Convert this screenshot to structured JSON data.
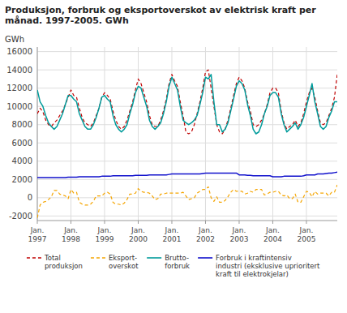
{
  "chart_data": {
    "type": "line",
    "title": "Produksjon, forbruk og eksportoverskot av elektrisk kraft per\nmånad. 1997-2005. GWh",
    "y_label": "GWh",
    "categories": [
      "Jan.\n1997",
      null,
      null,
      null,
      null,
      null,
      null,
      null,
      null,
      null,
      null,
      null,
      "Jan.\n1998",
      null,
      null,
      null,
      null,
      null,
      null,
      null,
      null,
      null,
      null,
      null,
      "Jan.\n1999",
      null,
      null,
      null,
      null,
      null,
      null,
      null,
      null,
      null,
      null,
      null,
      "Jan.\n2000",
      null,
      null,
      null,
      null,
      null,
      null,
      null,
      null,
      null,
      null,
      null,
      "Jan.\n2001",
      null,
      null,
      null,
      null,
      null,
      null,
      null,
      null,
      null,
      null,
      null,
      "Jan.\n2002",
      null,
      null,
      null,
      null,
      null,
      null,
      null,
      null,
      null,
      null,
      null,
      "Jan.\n2003",
      null,
      null,
      null,
      null,
      null,
      null,
      null,
      null,
      null,
      null,
      null,
      "Jan.\n2004",
      null,
      null,
      null,
      null,
      null,
      null,
      null,
      null,
      null,
      null,
      null,
      "Jan.\n2005",
      null,
      null,
      null,
      null,
      null,
      null,
      null,
      null,
      null,
      null,
      null
    ],
    "ylim": [
      -2500,
      16500
    ],
    "yticks": [
      -2000,
      0,
      2000,
      4000,
      6000,
      8000,
      10000,
      12000,
      14000,
      16000
    ],
    "grid": true,
    "legend": "bottom",
    "series": [
      {
        "name": "Total\nproduksjon",
        "color": "#c00000",
        "line_style": "dashed",
        "values": [
          9200,
          9800,
          9400,
          8500,
          8000,
          7800,
          8200,
          8500,
          9000,
          9500,
          10200,
          11000,
          11800,
          11200,
          11000,
          9800,
          8800,
          8200,
          8000,
          7800,
          8200,
          9000,
          9800,
          11000,
          11500,
          11200,
          10800,
          9500,
          8500,
          7800,
          7500,
          7800,
          8500,
          9500,
          10500,
          11800,
          13000,
          12500,
          11500,
          10500,
          9000,
          8000,
          7800,
          7800,
          8500,
          9500,
          10800,
          12500,
          13500,
          12800,
          12200,
          10500,
          9000,
          7200,
          7000,
          7200,
          8000,
          9200,
          10500,
          12000,
          13800,
          14000,
          12000,
          10000,
          8000,
          7200,
          7000,
          7500,
          8500,
          9800,
          11200,
          12500,
          13200,
          12800,
          12000,
          10500,
          9500,
          8000,
          7800,
          8000,
          8500,
          9200,
          10200,
          11500,
          12000,
          12000,
          11500,
          9500,
          8200,
          7500,
          7800,
          8000,
          8500,
          7800,
          8200,
          9200,
          10500,
          11500,
          12000,
          11000,
          9500,
          8200,
          8000,
          8200,
          9000,
          9800,
          11000,
          13500
        ]
      },
      {
        "name": "Eksport-\noverskot",
        "color": "#f5a500",
        "line_style": "dashed",
        "values": [
          -2200,
          -800,
          -500,
          -400,
          -200,
          100,
          800,
          800,
          400,
          300,
          200,
          -100,
          900,
          500,
          600,
          -500,
          -700,
          -800,
          -800,
          -700,
          -400,
          200,
          200,
          200,
          500,
          600,
          400,
          -500,
          -700,
          -700,
          -800,
          -600,
          -200,
          400,
          400,
          500,
          1000,
          700,
          600,
          600,
          500,
          200,
          -200,
          -100,
          400,
          400,
          500,
          500,
          500,
          500,
          500,
          500,
          600,
          200,
          -200,
          -100,
          0,
          500,
          700,
          900,
          900,
          1200,
          0,
          -400,
          100,
          -500,
          -500,
          -300,
          100,
          600,
          900,
          700,
          700,
          700,
          400,
          500,
          700,
          600,
          900,
          900,
          900,
          300,
          400,
          600,
          600,
          700,
          700,
          300,
          200,
          300,
          -100,
          -100,
          400,
          -500,
          -500,
          100,
          700,
          600,
          100,
          700,
          400,
          500,
          500,
          500,
          200,
          600,
          600,
          1400
        ]
      },
      {
        "name": "Brutto-\nforbruk",
        "color": "#009b9b",
        "line_style": "solid",
        "values": [
          11800,
          10500,
          10000,
          9000,
          8200,
          7800,
          7500,
          7800,
          8500,
          9200,
          10200,
          11200,
          11200,
          10800,
          10500,
          9200,
          8500,
          7800,
          7500,
          7500,
          8000,
          8800,
          9800,
          11000,
          11200,
          10800,
          10500,
          9000,
          8000,
          7500,
          7200,
          7500,
          8000,
          9200,
          10200,
          11500,
          12200,
          12000,
          11000,
          10000,
          8500,
          7800,
          7500,
          7800,
          8200,
          9200,
          10500,
          12200,
          13200,
          12500,
          11800,
          10000,
          8500,
          8200,
          8000,
          8200,
          8500,
          9000,
          10200,
          11500,
          13200,
          13000,
          13500,
          10500,
          8000,
          8000,
          7200,
          7500,
          8200,
          9500,
          10800,
          12200,
          12800,
          12500,
          11800,
          10200,
          9000,
          7500,
          7000,
          7200,
          8000,
          9200,
          10000,
          11200,
          11500,
          11500,
          11000,
          9200,
          8000,
          7200,
          7500,
          7800,
          8200,
          7500,
          8000,
          8800,
          10000,
          11200,
          12500,
          10500,
          9200,
          7800,
          7500,
          7800,
          8800,
          9500,
          10500,
          10500
        ]
      },
      {
        "name": "Forbruk i kraftintensiv\nindustri (eksklusive uprioritert\nkraft til elektrokjelar)",
        "color": "#1010cc",
        "line_style": "solid",
        "values": [
          2200,
          2200,
          2200,
          2200,
          2200,
          2200,
          2200,
          2200,
          2200,
          2200,
          2200,
          2250,
          2250,
          2250,
          2250,
          2300,
          2300,
          2300,
          2300,
          2300,
          2300,
          2300,
          2300,
          2350,
          2350,
          2350,
          2350,
          2400,
          2400,
          2400,
          2400,
          2400,
          2400,
          2400,
          2400,
          2450,
          2450,
          2450,
          2450,
          2450,
          2500,
          2500,
          2500,
          2500,
          2500,
          2500,
          2500,
          2550,
          2600,
          2600,
          2600,
          2600,
          2600,
          2600,
          2600,
          2600,
          2600,
          2600,
          2600,
          2650,
          2700,
          2700,
          2700,
          2700,
          2700,
          2700,
          2700,
          2700,
          2700,
          2700,
          2700,
          2700,
          2500,
          2500,
          2500,
          2450,
          2450,
          2400,
          2400,
          2400,
          2400,
          2400,
          2400,
          2400,
          2300,
          2300,
          2300,
          2300,
          2350,
          2350,
          2350,
          2350,
          2350,
          2350,
          2350,
          2400,
          2500,
          2500,
          2500,
          2500,
          2600,
          2600,
          2600,
          2650,
          2700,
          2700,
          2750,
          2800
        ]
      }
    ]
  }
}
